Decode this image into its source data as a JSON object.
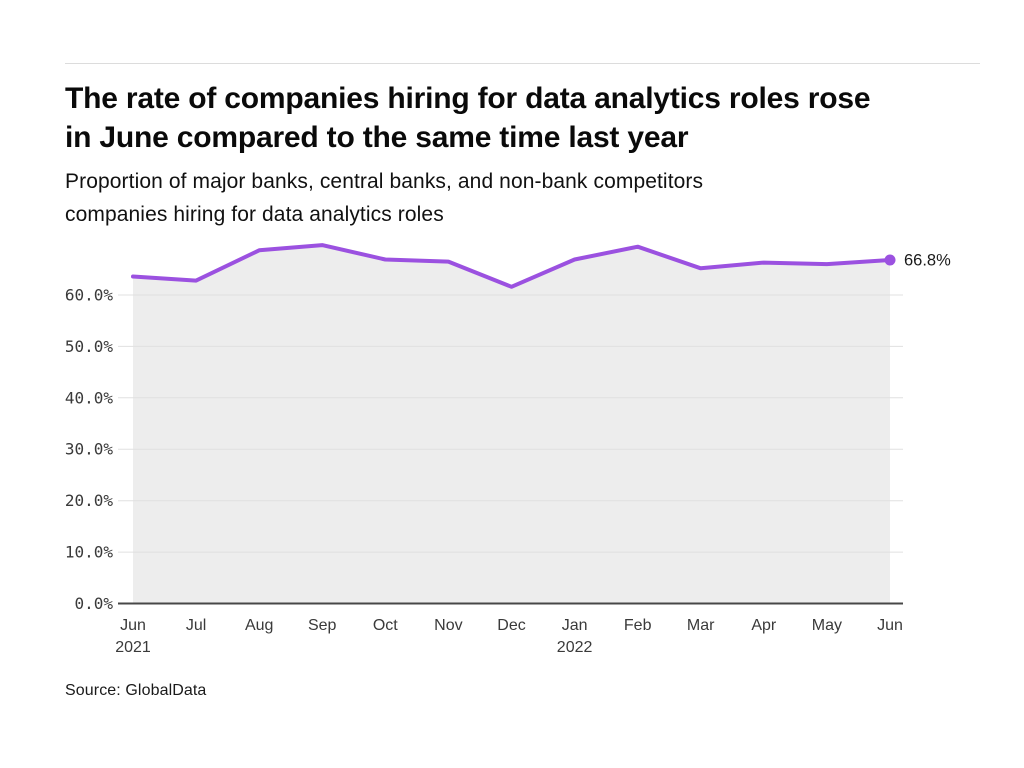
{
  "header": {
    "title_lines": [
      "The rate of companies hiring for data analytics roles rose",
      "in June compared to the same time last year"
    ],
    "subtitle_lines": [
      "Proportion of major banks, central banks, and non-bank competitors",
      "companies hiring for data analytics roles"
    ]
  },
  "footer": {
    "source": "Source: GlobalData"
  },
  "chart_data": {
    "type": "area",
    "title": "The rate of companies hiring for data analytics roles rose in June compared to the same time last year",
    "subtitle": "Proportion of major banks, central banks, and non-bank competitors companies hiring for data analytics roles",
    "source": "Source: GlobalData",
    "x": [
      "Jun 2021",
      "Jul 2021",
      "Aug 2021",
      "Sep 2021",
      "Oct 2021",
      "Nov 2021",
      "Dec 2021",
      "Jan 2022",
      "Feb 2022",
      "Mar 2022",
      "Apr 2022",
      "May 2022",
      "Jun 2022"
    ],
    "x_tick_labels": [
      "Jun",
      "Jul",
      "Aug",
      "Sep",
      "Oct",
      "Nov",
      "Dec",
      "Jan",
      "Feb",
      "Mar",
      "Apr",
      "May",
      "Jun"
    ],
    "x_year_labels": [
      {
        "index": 0,
        "label": "2021"
      },
      {
        "index": 7,
        "label": "2022"
      }
    ],
    "values": [
      63.6,
      62.8,
      68.7,
      69.7,
      66.9,
      66.5,
      61.6,
      66.9,
      69.4,
      65.2,
      66.3,
      66.0,
      66.8
    ],
    "unit": "%",
    "ylabel": "",
    "xlabel": "",
    "ylim": [
      0,
      71.5
    ],
    "yticks": [
      0,
      10,
      20,
      30,
      40,
      50,
      60
    ],
    "ytick_decimals": 1,
    "ytick_suffix": "%",
    "grid": true,
    "legend": "none",
    "end_point_label": "66.8%",
    "colors": {
      "line": "#9b51e0",
      "area_fill": "#ededed",
      "gridline": "#e0e0e0",
      "axis_line": "#474747",
      "tick_text": "#3a3a3a",
      "annotation_text": "#1a1a1a"
    }
  }
}
